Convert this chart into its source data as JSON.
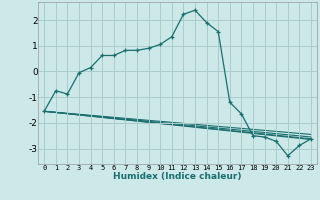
{
  "xlabel": "Humidex (Indice chaleur)",
  "bg_color": "#cce8e8",
  "grid_color": "#aacccc",
  "line_color": "#1a6e6e",
  "xlim": [
    -0.5,
    23.5
  ],
  "ylim": [
    -3.6,
    2.7
  ],
  "xticks": [
    0,
    1,
    2,
    3,
    4,
    5,
    6,
    7,
    8,
    9,
    10,
    11,
    12,
    13,
    14,
    15,
    16,
    17,
    18,
    19,
    20,
    21,
    22,
    23
  ],
  "yticks": [
    -3,
    -2,
    -1,
    0,
    1,
    2
  ],
  "series": [
    [
      0,
      -1.55
    ],
    [
      1,
      -0.75
    ],
    [
      2,
      -0.88
    ],
    [
      3,
      -0.05
    ],
    [
      4,
      0.15
    ],
    [
      5,
      0.62
    ],
    [
      6,
      0.62
    ],
    [
      7,
      0.82
    ],
    [
      8,
      0.82
    ],
    [
      9,
      0.9
    ],
    [
      10,
      1.05
    ],
    [
      11,
      1.35
    ],
    [
      12,
      2.22
    ],
    [
      13,
      2.38
    ],
    [
      14,
      1.9
    ],
    [
      15,
      1.55
    ],
    [
      16,
      -1.2
    ],
    [
      17,
      -1.65
    ],
    [
      18,
      -2.5
    ],
    [
      19,
      -2.55
    ],
    [
      20,
      -2.72
    ],
    [
      21,
      -3.28
    ],
    [
      22,
      -2.88
    ],
    [
      23,
      -2.62
    ]
  ],
  "convergence_lines": [
    [
      [
        0,
        -1.55
      ],
      [
        23,
        -2.45
      ]
    ],
    [
      [
        0,
        -1.55
      ],
      [
        23,
        -2.55
      ]
    ],
    [
      [
        0,
        -1.55
      ],
      [
        23,
        -2.65
      ]
    ],
    [
      [
        0,
        -1.55
      ],
      [
        23,
        -2.62
      ]
    ]
  ]
}
